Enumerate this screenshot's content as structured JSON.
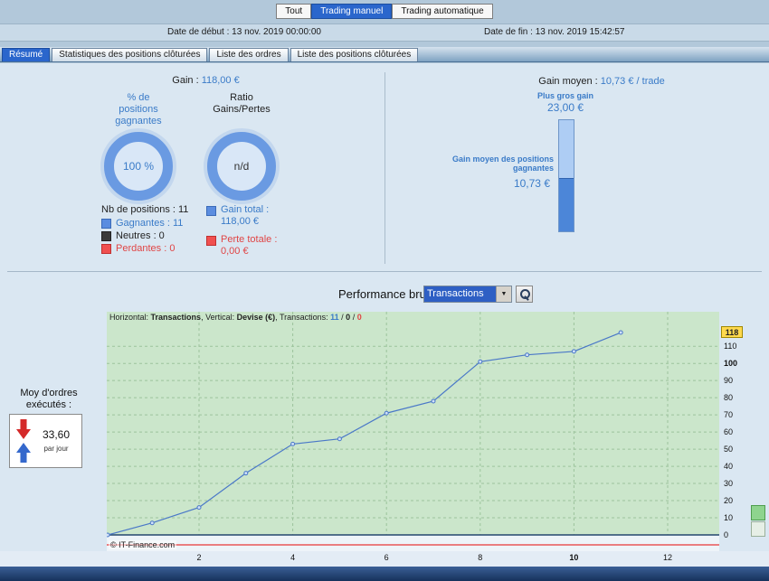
{
  "topbar": {
    "tabs": [
      {
        "label": "Tout"
      },
      {
        "label": "Trading manuel"
      },
      {
        "label": "Trading automatique"
      }
    ],
    "date_start_label": "Date de début :",
    "date_start_value": "13 nov. 2019 00:00:00",
    "date_end_label": "Date de fin :",
    "date_end_value": "13 nov. 2019 15:42:57"
  },
  "section_tabs": [
    {
      "label": "Résumé"
    },
    {
      "label": "Statistiques des positions clôturées"
    },
    {
      "label": "Liste des ordres"
    },
    {
      "label": "Liste des positions clôturées"
    }
  ],
  "summary": {
    "gain_label": "Gain :",
    "gain_value": "118,00 €",
    "winning_pct_header": "% de positions gagnantes",
    "ratio_header": "Ratio Gains/Pertes",
    "winning_pct_value": "100 %",
    "ratio_value": "n/d",
    "nb_positions_label": "Nb de positions : 11",
    "legend": [
      {
        "label": "Gagnantes : 11"
      },
      {
        "label": "Neutres : 0"
      },
      {
        "label": "Perdantes : 0"
      }
    ],
    "gain_total_label": "Gain total :",
    "gain_total_value": "118,00 €",
    "perte_totale_label": "Perte totale :",
    "perte_totale_value": "0,00 €"
  },
  "gain_moyen": {
    "label": "Gain moyen :",
    "value": "10,73 € / trade",
    "plus_gros_gain_label": "Plus gros gain",
    "plus_gros_gain_value": "23,00 €",
    "avg_label": "Gain moyen des positions gagnantes",
    "avg_value": "10,73 €"
  },
  "performance": {
    "title": "Performance brute",
    "dropdown_value": "Transactions",
    "avg_orders_label": "Moy d'ordres exécutés :",
    "avg_orders_value": "33,60",
    "avg_orders_unit": "par jour"
  },
  "chart_data": {
    "type": "line",
    "title": "Performance brute",
    "xlabel": "Transactions",
    "ylabel": "Devise (€)",
    "header": {
      "p1": "Horizontal: ",
      "h_value": "Transactions",
      "p2": ", Vertical: ",
      "v_value": "Devise (€)",
      "p3": ", Transactions: ",
      "wins": "11",
      "sep1": " / ",
      "neutrals": "0",
      "sep2": " / ",
      "losses": "0"
    },
    "x": [
      0,
      1,
      2,
      3,
      4,
      5,
      6,
      7,
      8,
      9,
      10,
      11
    ],
    "series": [
      {
        "name": "Gains cumulés",
        "color": "#4a78c8",
        "values": [
          0,
          7,
          16,
          36,
          53,
          56,
          71,
          78,
          101,
          105,
          107,
          118
        ]
      },
      {
        "name": "Neutres",
        "color": "#24466e",
        "values": [
          0,
          0,
          0,
          0,
          0,
          0,
          0,
          0,
          0,
          0,
          0,
          0
        ]
      },
      {
        "name": "Pertes",
        "color": "#e83838",
        "values": [
          0,
          0,
          0,
          0,
          0,
          0,
          0,
          0,
          0,
          0,
          0,
          0
        ]
      }
    ],
    "x_ticks": [
      2,
      4,
      6,
      8,
      10,
      12
    ],
    "y_ticks": [
      0,
      10,
      20,
      30,
      40,
      50,
      60,
      70,
      80,
      90,
      100,
      110
    ],
    "ylim": [
      -9,
      130
    ],
    "current_value": 118,
    "grid": "dashed",
    "copyright": "© IT-Finance.com"
  }
}
